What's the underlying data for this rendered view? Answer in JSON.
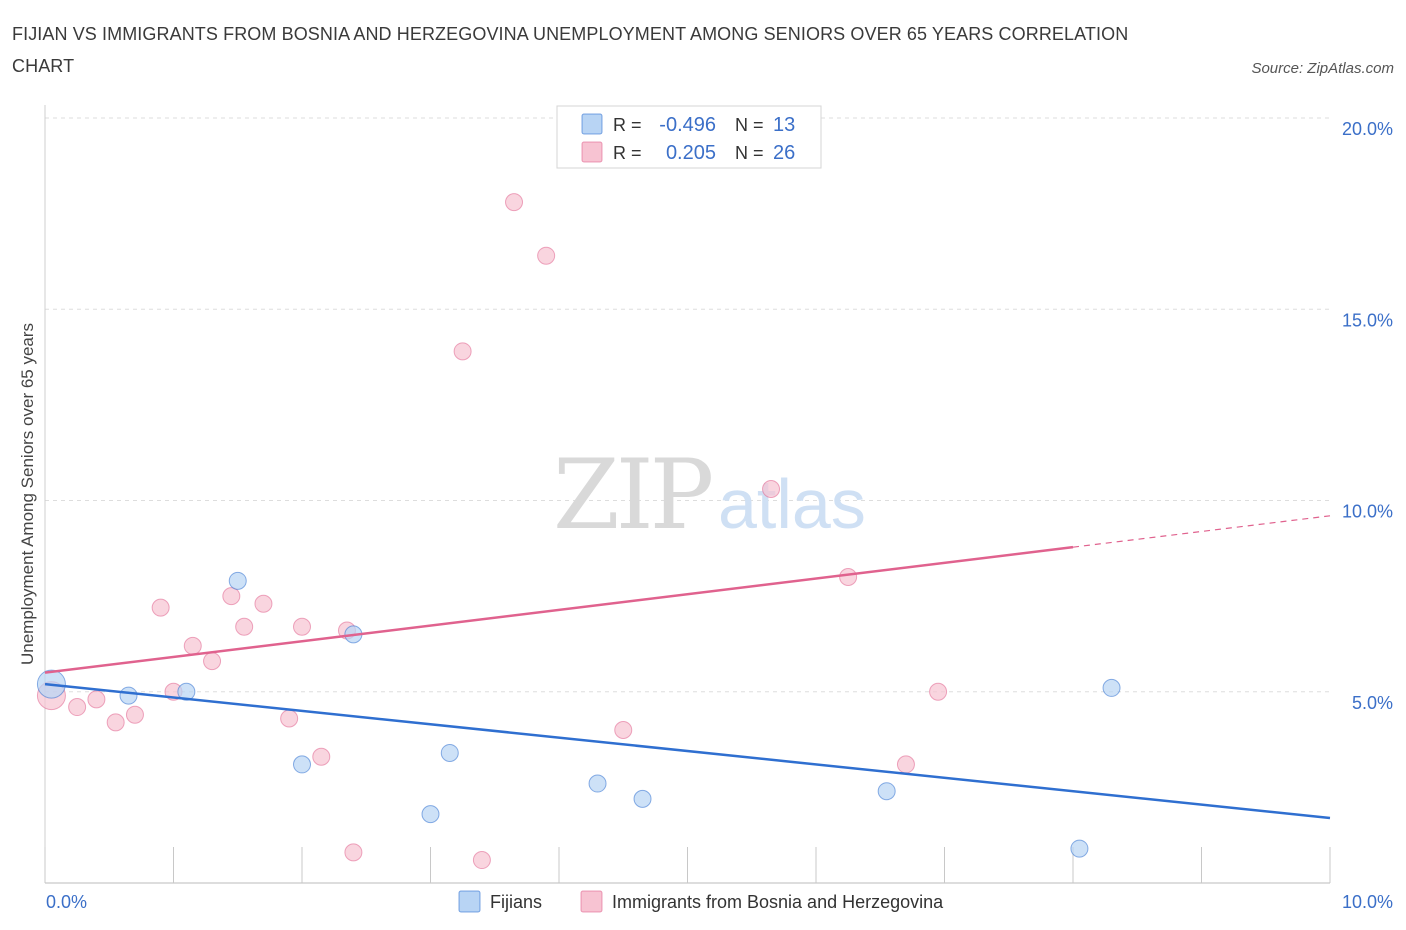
{
  "header": {
    "title": "FIJIAN VS IMMIGRANTS FROM BOSNIA AND HERZEGOVINA UNEMPLOYMENT AMONG SENIORS OVER 65 YEARS CORRELATION CHART",
    "source": "Source: ZipAtlas.com"
  },
  "watermark": {
    "zip": "ZIP",
    "atlas": "atlas"
  },
  "colors": {
    "blue_fill": "#b8d4f4",
    "blue_line": "#2f6fd0",
    "pink_fill": "#f7c3d2",
    "pink_line": "#e0628e",
    "tick_text": "#3b6fc8",
    "grid": "#dddddd"
  },
  "chart_data": {
    "type": "scatter",
    "title": "FIJIAN VS IMMIGRANTS FROM BOSNIA AND HERZEGOVINA UNEMPLOYMENT AMONG SENIORS OVER 65 YEARS CORRELATION CHART",
    "xlabel": "",
    "ylabel": "Unemployment Among Seniors over 65 years",
    "xlim": [
      0,
      10
    ],
    "ylim": [
      0,
      20
    ],
    "x_tick_labels": [
      "0.0%",
      "10.0%"
    ],
    "y_ticks": [
      5,
      10,
      15,
      20
    ],
    "y_tick_labels": [
      "5.0%",
      "10.0%",
      "15.0%",
      "20.0%"
    ],
    "grid": true,
    "legend_position": "bottom-center",
    "stats": [
      {
        "r_label": "R =",
        "r": "-0.496",
        "n_label": "N =",
        "n": "13"
      },
      {
        "r_label": "R =",
        "r": "0.205",
        "n_label": "N =",
        "n": "26"
      }
    ],
    "series": [
      {
        "name": "Fijians",
        "color": "#b8d4f4",
        "trend": {
          "x": [
            0,
            10
          ],
          "y": [
            5.2,
            1.7
          ],
          "dashed_after": null
        },
        "points": [
          {
            "x": 0.05,
            "y": 5.2,
            "big": true
          },
          {
            "x": 0.65,
            "y": 4.9
          },
          {
            "x": 1.1,
            "y": 5.0
          },
          {
            "x": 1.5,
            "y": 7.9
          },
          {
            "x": 2.0,
            "y": 3.1
          },
          {
            "x": 2.4,
            "y": 6.5
          },
          {
            "x": 3.0,
            "y": 1.8
          },
          {
            "x": 3.15,
            "y": 3.4
          },
          {
            "x": 4.3,
            "y": 2.6
          },
          {
            "x": 4.65,
            "y": 2.2
          },
          {
            "x": 6.55,
            "y": 2.4
          },
          {
            "x": 8.3,
            "y": 5.1
          },
          {
            "x": 8.05,
            "y": 0.9
          }
        ]
      },
      {
        "name": "Immigrants from Bosnia and Herzegovina",
        "color": "#f7c3d2",
        "trend": {
          "x": [
            0,
            10
          ],
          "y": [
            5.5,
            9.6
          ],
          "dashed_after": 8.0
        },
        "points": [
          {
            "x": 0.05,
            "y": 4.9,
            "big": true
          },
          {
            "x": 0.25,
            "y": 4.6
          },
          {
            "x": 0.4,
            "y": 4.8
          },
          {
            "x": 0.55,
            "y": 4.2
          },
          {
            "x": 0.7,
            "y": 4.4
          },
          {
            "x": 0.9,
            "y": 7.2
          },
          {
            "x": 1.0,
            "y": 5.0
          },
          {
            "x": 1.15,
            "y": 6.2
          },
          {
            "x": 1.3,
            "y": 5.8
          },
          {
            "x": 1.45,
            "y": 7.5
          },
          {
            "x": 1.55,
            "y": 6.7
          },
          {
            "x": 1.7,
            "y": 7.3
          },
          {
            "x": 1.9,
            "y": 4.3
          },
          {
            "x": 2.0,
            "y": 6.7
          },
          {
            "x": 2.15,
            "y": 3.3
          },
          {
            "x": 2.35,
            "y": 6.6
          },
          {
            "x": 2.4,
            "y": 0.8
          },
          {
            "x": 3.25,
            "y": 13.9
          },
          {
            "x": 3.4,
            "y": 0.6
          },
          {
            "x": 3.65,
            "y": 17.8
          },
          {
            "x": 3.9,
            "y": 16.4
          },
          {
            "x": 4.5,
            "y": 4.0
          },
          {
            "x": 5.65,
            "y": 10.3
          },
          {
            "x": 6.25,
            "y": 8.0
          },
          {
            "x": 6.7,
            "y": 3.1
          },
          {
            "x": 6.95,
            "y": 5.0
          }
        ]
      }
    ]
  }
}
